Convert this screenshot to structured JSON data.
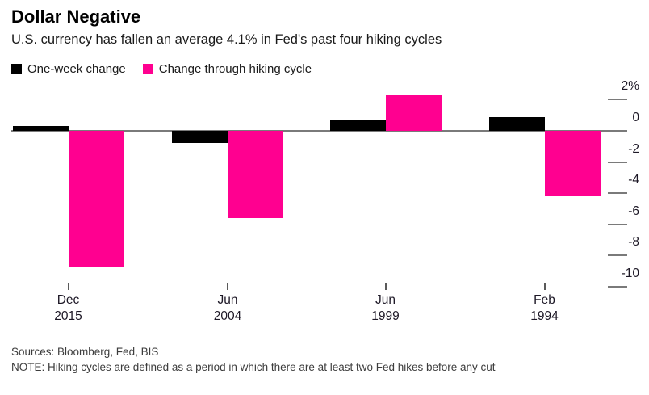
{
  "chart_data": {
    "type": "bar",
    "title": "Dollar Negative",
    "subtitle": "U.S. currency has fallen an average 4.1% in Fed's past four hiking cycles",
    "categories": [
      "Dec 2015",
      "Jun 2004",
      "Jun 1999",
      "Feb 1994"
    ],
    "series": [
      {
        "name": "One-week change",
        "color": "#000000",
        "values": [
          0.3,
          -0.8,
          0.7,
          0.9
        ]
      },
      {
        "name": "Change through hiking cycle",
        "color": "#ff0090",
        "values": [
          -8.7,
          -5.6,
          2.3,
          -4.2
        ]
      }
    ],
    "ylabel": "%",
    "yticks": [
      2,
      0,
      -2,
      -4,
      -6,
      -8,
      -10
    ],
    "ytick_labels": [
      "2%",
      "0",
      "-2",
      "-4",
      "-6",
      "-8",
      "-10"
    ],
    "ylim": [
      -10.5,
      2.5
    ],
    "grid": false,
    "legend_position": "top-left",
    "zero_line_color": "#7a7a7a"
  },
  "footer": {
    "sources": "Sources: Bloomberg, Fed, BIS",
    "note": "NOTE: Hiking cycles are defined as a period in which there are at least two Fed hikes before any cut"
  }
}
